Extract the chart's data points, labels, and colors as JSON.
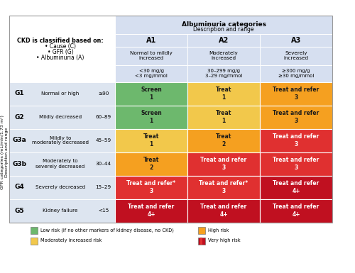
{
  "col_headers": [
    "A1",
    "A2",
    "A3"
  ],
  "col_sub": [
    "Normal to mildly\nincreased",
    "Moderately\nincreased",
    "Severely\nincreased"
  ],
  "col_range": [
    "<30 mg/g\n<3 mg/mmol",
    "30–299 mg/g\n3–29 mg/mmol",
    "≥300 mg/g\n≥30 mg/mmol"
  ],
  "row_labels": [
    "G1",
    "G2",
    "G3a",
    "G3b",
    "G4",
    "G5"
  ],
  "row_desc": [
    "Normal or high",
    "Mildly decreased",
    "Mildly to\nmoderately decreased",
    "Moderately to\nseverely decreased",
    "Severely decreased",
    "Kidney failure"
  ],
  "row_range": [
    "≥90",
    "60–89",
    "45–59",
    "30–44",
    "15–29",
    "<15"
  ],
  "cell_text": [
    [
      "Screen\n1",
      "Treat\n1",
      "Treat and refer\n3"
    ],
    [
      "Screen\n1",
      "Treat\n1",
      "Treat and refer\n3"
    ],
    [
      "Treat\n1",
      "Treat\n2",
      "Treat and refer\n3"
    ],
    [
      "Treat\n2",
      "Treat and refer\n3",
      "Treat and refer\n3"
    ],
    [
      "Treat and refer*\n3",
      "Treat and refer*\n3",
      "Treat and refer\n4+"
    ],
    [
      "Treat and refer\n4+",
      "Treat and refer\n4+",
      "Treat and refer\n4+"
    ]
  ],
  "cell_colors": [
    [
      "#6db86d",
      "#f2c84b",
      "#f5a020"
    ],
    [
      "#6db86d",
      "#f2c84b",
      "#f5a020"
    ],
    [
      "#f2c84b",
      "#f5a020",
      "#e03030"
    ],
    [
      "#f5a020",
      "#e03030",
      "#e03030"
    ],
    [
      "#e03030",
      "#e03030",
      "#c01020"
    ],
    [
      "#c01020",
      "#c01020",
      "#c01020"
    ]
  ],
  "cell_text_dark": [
    [
      true,
      true,
      true
    ],
    [
      true,
      true,
      true
    ],
    [
      true,
      true,
      false
    ],
    [
      true,
      false,
      false
    ],
    [
      false,
      false,
      false
    ],
    [
      false,
      false,
      false
    ]
  ],
  "legend_items": [
    {
      "color": "#6db86d",
      "label": "Low risk (if no other markers of kidney disease, no CKD)"
    },
    {
      "color": "#f2c84b",
      "label": "Moderately increased risk"
    },
    {
      "color": "#f5a020",
      "label": "High risk"
    },
    {
      "color": "#c01020",
      "label": "Very high risk",
      "stripe": "#e03030"
    }
  ],
  "ckd_text_line1": "CKD is classified based on:",
  "ckd_bullets": [
    "• Cause (C)",
    "• GFR (G)",
    "• Albuminuria (A)"
  ],
  "ytitle": "GFR categories (mL/min/1.73 m²)\nDescription and range",
  "bg_header": "#d6dff0",
  "bg_row": "#dde5f0",
  "white": "#ffffff"
}
